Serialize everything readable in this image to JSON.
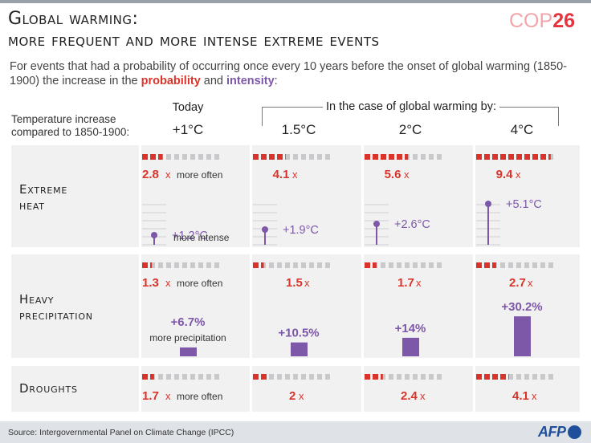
{
  "header": {
    "title_line1": "Global warming:",
    "title_line2": "more frequent and more intense extreme events",
    "logo_text": "COP",
    "logo_number": "26",
    "intro_before": "For events that had a probability of occurring once every 10 years before the onset of global warming (1850-1900) the increase in the ",
    "intro_probability": "probability",
    "intro_and": " and ",
    "intro_intensity": "intensity",
    "intro_after": ":"
  },
  "columns": {
    "row_header_line1": "Temperature increase",
    "row_header_line2": "compared to 1850-1900:",
    "today_label": "Today",
    "scenario_label": "In the case of global warming by:",
    "temps": [
      "+1°C",
      "1.5°C",
      "2°C",
      "4°C"
    ]
  },
  "rows": {
    "heat": {
      "label_line1": "Extreme",
      "label_line2": "heat"
    },
    "precip": {
      "label_line1": "Heavy",
      "label_line2": "precipitation"
    },
    "drought": {
      "label_line1": "Droughts"
    }
  },
  "notes": {
    "more_often": "more often",
    "more_intense": "more intense",
    "more_precipitation": "more precipitation"
  },
  "colors": {
    "probability": "#d9342b",
    "probability_light": "#f2a7a2",
    "intensity": "#7d58a8",
    "empty_square": "#c9c9cc",
    "panel": "#f1f1f2"
  },
  "chart_data": {
    "type": "table",
    "unit_squares_per_row": 10,
    "categories": [
      "+1°C",
      "1.5°C",
      "2°C",
      "4°C"
    ],
    "series": [
      {
        "name": "Extreme heat",
        "probability_multiplier": [
          2.8,
          4.1,
          5.6,
          9.4
        ],
        "probability_labels": [
          "2.8",
          "4.1",
          "5.6",
          "9.4"
        ],
        "intensity_celsius": [
          1.2,
          1.9,
          2.6,
          5.1
        ],
        "intensity_labels": [
          "+1.2°C",
          "+1.9°C",
          "+2.6°C",
          "+5.1°C"
        ]
      },
      {
        "name": "Heavy precipitation",
        "probability_multiplier": [
          1.3,
          1.5,
          1.7,
          2.7
        ],
        "probability_labels": [
          "1.3",
          "1.5",
          "1.7",
          "2.7"
        ],
        "intensity_percent": [
          6.7,
          10.5,
          14,
          30.2
        ],
        "intensity_labels": [
          "+6.7%",
          "+10.5%",
          "+14%",
          "+30.2%"
        ]
      },
      {
        "name": "Droughts",
        "probability_multiplier": [
          1.7,
          2,
          2.4,
          4.1
        ],
        "probability_labels": [
          "1.7",
          "2",
          "2.4",
          "4.1"
        ]
      }
    ]
  },
  "footer": {
    "source": "Source: Intergovernmental Panel on Climate Change (IPCC)",
    "agency": "AFP"
  }
}
